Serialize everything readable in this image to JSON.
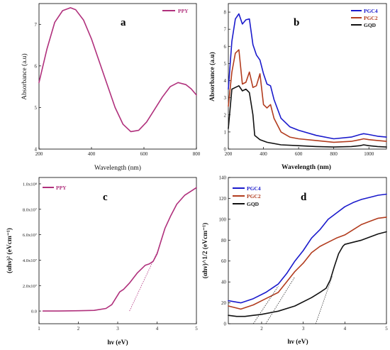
{
  "chart_data": [
    {
      "panel": "a",
      "type": "line",
      "xlabel": "Wavelength (nm)",
      "ylabel": "Absorbance (a.u)",
      "xlim": [
        200,
        800
      ],
      "ylim": [
        4,
        7.5
      ],
      "xticks": [
        "200",
        "400",
        "600",
        "800"
      ],
      "yticks": [
        "4",
        "5",
        "6",
        "7"
      ],
      "series": [
        {
          "name": "PPY",
          "color": "#b0307c",
          "x": [
            200,
            230,
            260,
            290,
            320,
            340,
            370,
            400,
            430,
            460,
            490,
            520,
            550,
            580,
            610,
            640,
            670,
            700,
            730,
            760,
            780,
            800
          ],
          "y": [
            5.6,
            6.4,
            7.05,
            7.33,
            7.4,
            7.35,
            7.1,
            6.65,
            6.1,
            5.55,
            5.0,
            4.6,
            4.42,
            4.45,
            4.65,
            4.95,
            5.25,
            5.5,
            5.6,
            5.55,
            5.45,
            5.3
          ]
        }
      ]
    },
    {
      "panel": "b",
      "type": "line",
      "xlabel": "Wavelength (nm)",
      "ylabel": "Absorbance (a.u)",
      "xlim": [
        200,
        1100
      ],
      "ylim": [
        0,
        8.5
      ],
      "xticks": [
        "200",
        "400",
        "600",
        "800",
        "1000"
      ],
      "yticks": [
        "0",
        "1",
        "2",
        "3",
        "4",
        "5",
        "6",
        "7",
        "8"
      ],
      "series": [
        {
          "name": "PGC4",
          "color": "#1a1acc",
          "x": [
            200,
            220,
            240,
            260,
            280,
            300,
            320,
            340,
            360,
            380,
            400,
            420,
            440,
            460,
            500,
            550,
            600,
            700,
            800,
            900,
            950,
            970,
            1000,
            1050,
            1100
          ],
          "y": [
            3.5,
            6.3,
            7.6,
            7.9,
            7.3,
            7.55,
            7.6,
            6.1,
            5.5,
            5.2,
            4.4,
            3.8,
            3.7,
            2.9,
            1.8,
            1.3,
            1.1,
            0.8,
            0.6,
            0.7,
            0.85,
            0.9,
            0.85,
            0.75,
            0.7
          ]
        },
        {
          "name": "PGC2",
          "color": "#b23c1e",
          "x": [
            200,
            220,
            240,
            260,
            280,
            300,
            320,
            340,
            360,
            380,
            400,
            420,
            440,
            460,
            500,
            550,
            600,
            700,
            800,
            900,
            950,
            970,
            1000,
            1050,
            1100
          ],
          "y": [
            2.5,
            4.5,
            5.6,
            5.8,
            3.8,
            3.9,
            4.5,
            3.6,
            3.7,
            4.4,
            2.6,
            2.4,
            2.6,
            1.8,
            1.0,
            0.7,
            0.6,
            0.5,
            0.4,
            0.45,
            0.55,
            0.6,
            0.55,
            0.5,
            0.45
          ]
        },
        {
          "name": "GQD",
          "color": "#111111",
          "x": [
            200,
            220,
            240,
            260,
            280,
            300,
            320,
            340,
            350,
            380,
            420,
            500,
            600,
            700,
            800,
            900,
            950,
            970,
            1000,
            1050,
            1100
          ],
          "y": [
            1.2,
            3.5,
            3.6,
            3.7,
            3.4,
            3.5,
            3.3,
            2.0,
            0.8,
            0.55,
            0.4,
            0.25,
            0.2,
            0.15,
            0.12,
            0.15,
            0.2,
            0.25,
            0.2,
            0.15,
            0.12
          ]
        }
      ]
    },
    {
      "panel": "c",
      "type": "line",
      "xlabel": "hν (eV)",
      "ylabel": "(αhν)² (eVcm⁻¹)",
      "xlim": [
        1,
        5
      ],
      "ylim": [
        -0.1,
        1.05
      ],
      "xticks": [
        "1",
        "2",
        "3",
        "4",
        "5"
      ],
      "yticks": [
        "0.0",
        "2.0x10⁷",
        "4.0x10⁷",
        "6.0x10⁷",
        "8.0x10⁷",
        "1.0x10⁸"
      ],
      "series": [
        {
          "name": "PPY",
          "color": "#b0307c",
          "x": [
            1.1,
            1.5,
            2.0,
            2.4,
            2.7,
            2.85,
            2.95,
            3.05,
            3.15,
            3.3,
            3.5,
            3.7,
            3.8,
            3.9,
            4.0,
            4.1,
            4.2,
            4.35,
            4.5,
            4.7,
            4.9,
            5.0
          ],
          "y": [
            0.0,
            0.0,
            0.002,
            0.005,
            0.02,
            0.05,
            0.1,
            0.15,
            0.17,
            0.22,
            0.3,
            0.36,
            0.37,
            0.39,
            0.45,
            0.55,
            0.65,
            0.75,
            0.84,
            0.91,
            0.95,
            0.97
          ]
        }
      ],
      "tangent": {
        "x": [
          3.3,
          4.0
        ],
        "y": [
          0.0,
          0.46
        ]
      }
    },
    {
      "panel": "d",
      "type": "line",
      "xlabel": "hν (eV)",
      "ylabel": "(αhν)^1/2 (eVcm⁻¹)",
      "xlim": [
        1.2,
        5
      ],
      "ylim": [
        0,
        140
      ],
      "xticks": [
        "2",
        "3",
        "4",
        "5"
      ],
      "yticks": [
        "0",
        "20",
        "40",
        "60",
        "80",
        "100",
        "120",
        "140"
      ],
      "series": [
        {
          "name": "PGC4",
          "color": "#1a1acc",
          "x": [
            1.2,
            1.5,
            1.8,
            2.1,
            2.4,
            2.6,
            2.8,
            3.0,
            3.2,
            3.4,
            3.6,
            3.8,
            4.0,
            4.2,
            4.4,
            4.6,
            4.8,
            5.0
          ],
          "y": [
            22,
            20,
            24,
            30,
            38,
            48,
            60,
            70,
            82,
            90,
            100,
            106,
            112,
            116,
            119,
            121,
            123,
            124
          ]
        },
        {
          "name": "PGC2",
          "color": "#b23c1e",
          "x": [
            1.2,
            1.5,
            1.8,
            2.1,
            2.4,
            2.6,
            2.8,
            3.0,
            3.2,
            3.4,
            3.6,
            3.8,
            4.0,
            4.2,
            4.4,
            4.6,
            4.8,
            5.0
          ],
          "y": [
            17,
            14,
            18,
            24,
            30,
            40,
            50,
            58,
            68,
            74,
            78,
            82,
            85,
            90,
            95,
            98,
            101,
            102
          ]
        },
        {
          "name": "GQD",
          "color": "#111111",
          "x": [
            1.2,
            1.4,
            1.6,
            1.8,
            2.0,
            2.4,
            2.8,
            3.2,
            3.4,
            3.55,
            3.65,
            3.75,
            3.85,
            3.95,
            4.0,
            4.2,
            4.4,
            4.6,
            4.8,
            5.0
          ],
          "y": [
            8,
            7,
            7,
            8,
            9,
            12,
            17,
            25,
            30,
            34,
            42,
            55,
            67,
            74,
            76,
            78,
            80,
            83,
            86,
            88
          ]
        }
      ],
      "tangents": [
        {
          "x": [
            1.8,
            2.4
          ],
          "y": [
            0,
            36
          ]
        },
        {
          "x": [
            2.1,
            2.8
          ],
          "y": [
            0,
            45
          ]
        },
        {
          "x": [
            3.3,
            3.7
          ],
          "y": [
            0,
            46
          ]
        }
      ]
    }
  ]
}
